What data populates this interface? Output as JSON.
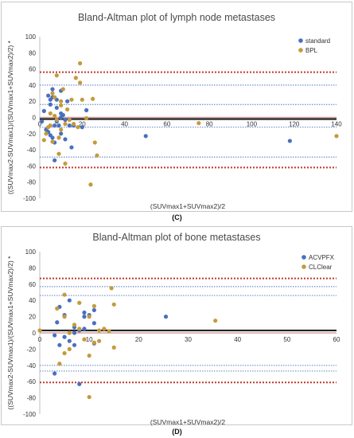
{
  "panels": [
    {
      "caption": "(C)",
      "colors": {
        "series1": "#4a6fc0",
        "series2": "#c49a3c",
        "mean": "#222222",
        "loa": "#c0392b",
        "ci": "#6f8fcf",
        "zero": "#d4a0a0"
      }
    },
    {
      "caption": "(D)",
      "colors": {
        "series1": "#4a6fc0",
        "series2": "#c49a3c",
        "mean": "#222222",
        "loa": "#c0392b",
        "ci": "#6f8fcf",
        "zero": "#d4a0a0"
      }
    }
  ],
  "chart_data": [
    {
      "type": "scatter",
      "title": "Bland-Altman plot of lymph node metastases",
      "xlabel": "(SUVmax1+SUVmax2)/2",
      "ylabel": "((SUVmax2-SUVmax1)/(SUVmax1+SUVmax2)/2) *",
      "xlim": [
        0,
        140
      ],
      "ylim": [
        -100,
        100
      ],
      "xticks": [
        0,
        20,
        40,
        60,
        80,
        100,
        120,
        140
      ],
      "yticks": [
        -100,
        -80,
        -60,
        -40,
        -20,
        0,
        20,
        40,
        60,
        80,
        100
      ],
      "legend": "top-right",
      "reference_lines": {
        "mean": -2,
        "limits_of_agreement": [
          56,
          -62
        ],
        "confidence_bounds": [
          40,
          16,
          -12,
          -49
        ]
      },
      "series": [
        {
          "name": "standard",
          "points": [
            [
              1,
              -5
            ],
            [
              2,
              8
            ],
            [
              3,
              -15
            ],
            [
              4,
              -18
            ],
            [
              4,
              27
            ],
            [
              5,
              22
            ],
            [
              5,
              16
            ],
            [
              5,
              -22
            ],
            [
              6,
              35
            ],
            [
              6,
              25
            ],
            [
              6,
              -25
            ],
            [
              7,
              -10
            ],
            [
              7,
              -31
            ],
            [
              7,
              -53
            ],
            [
              8,
              22
            ],
            [
              8,
              12
            ],
            [
              8,
              -5
            ],
            [
              9,
              -10
            ],
            [
              10,
              33
            ],
            [
              10,
              5
            ],
            [
              10,
              -20
            ],
            [
              10,
              0
            ],
            [
              11,
              3
            ],
            [
              12,
              -3
            ],
            [
              12,
              -27
            ],
            [
              13,
              20
            ],
            [
              14,
              -10
            ],
            [
              15,
              -37
            ],
            [
              16,
              -10
            ],
            [
              20,
              -12
            ],
            [
              22,
              9
            ],
            [
              50,
              -23
            ],
            [
              118,
              -29
            ]
          ]
        },
        {
          "name": "BPL",
          "points": [
            [
              2,
              -28
            ],
            [
              3,
              -20
            ],
            [
              4,
              -12
            ],
            [
              5,
              5
            ],
            [
              5,
              -10
            ],
            [
              6,
              30
            ],
            [
              6,
              -30
            ],
            [
              7,
              25
            ],
            [
              7,
              2
            ],
            [
              8,
              52
            ],
            [
              8,
              -3
            ],
            [
              9,
              -45
            ],
            [
              9,
              -25
            ],
            [
              10,
              20
            ],
            [
              10,
              15
            ],
            [
              10,
              -15
            ],
            [
              11,
              35
            ],
            [
              12,
              -8
            ],
            [
              12,
              -57
            ],
            [
              13,
              10
            ],
            [
              14,
              -3
            ],
            [
              15,
              22
            ],
            [
              16,
              -8
            ],
            [
              17,
              49
            ],
            [
              18,
              -12
            ],
            [
              19,
              67
            ],
            [
              19,
              43
            ],
            [
              20,
              22
            ],
            [
              22,
              -1
            ],
            [
              24,
              -83
            ],
            [
              25,
              23
            ],
            [
              26,
              -31
            ],
            [
              27,
              -47
            ],
            [
              75,
              -7
            ],
            [
              140,
              -23
            ]
          ]
        }
      ]
    },
    {
      "type": "scatter",
      "title": "Bland-Altman plot of bone metastases",
      "xlabel": "(SUVmax1+SUVmax2)/2",
      "ylabel": "((SUVmax2-SUVmax1)/(SUVmax1+SUVmax2)/2) *",
      "xlim": [
        0,
        60
      ],
      "ylim": [
        -100,
        100
      ],
      "xticks": [
        0,
        10,
        20,
        30,
        40,
        50,
        60
      ],
      "yticks": [
        -100,
        -80,
        -60,
        -40,
        -20,
        0,
        20,
        40,
        60,
        80,
        100
      ],
      "legend": "top-right",
      "reference_lines": {
        "mean": 3,
        "limits_of_agreement": [
          67,
          -61
        ],
        "confidence_bounds": [
          57,
          46,
          -40,
          -47
        ]
      },
      "series": [
        {
          "name": "ACVPFX",
          "points": [
            [
              3,
              -3
            ],
            [
              3,
              -50
            ],
            [
              3.5,
              13
            ],
            [
              4,
              -15
            ],
            [
              4,
              32
            ],
            [
              5,
              22
            ],
            [
              5,
              -5
            ],
            [
              6,
              -10
            ],
            [
              6,
              40
            ],
            [
              7,
              0
            ],
            [
              7,
              -15
            ],
            [
              7,
              7
            ],
            [
              8,
              -63
            ],
            [
              8,
              3
            ],
            [
              9,
              5
            ],
            [
              9,
              20
            ],
            [
              9,
              25
            ],
            [
              10,
              22
            ],
            [
              11,
              12
            ],
            [
              11,
              28
            ],
            [
              11,
              -13
            ],
            [
              25.5,
              20
            ]
          ]
        },
        {
          "name": "CLClear",
          "points": [
            [
              0,
              3
            ],
            [
              3.5,
              30
            ],
            [
              4,
              -38
            ],
            [
              5,
              -25
            ],
            [
              5,
              47
            ],
            [
              5,
              20
            ],
            [
              6,
              -20
            ],
            [
              6,
              0
            ],
            [
              7,
              10
            ],
            [
              8,
              5
            ],
            [
              8,
              37
            ],
            [
              9,
              -8
            ],
            [
              10,
              -28
            ],
            [
              10,
              -79
            ],
            [
              10,
              20
            ],
            [
              11,
              33
            ],
            [
              11,
              -12
            ],
            [
              12,
              -10
            ],
            [
              12,
              3
            ],
            [
              13,
              5
            ],
            [
              14,
              2
            ],
            [
              14.5,
              55
            ],
            [
              15,
              -18
            ],
            [
              15,
              35
            ],
            [
              35.5,
              15
            ]
          ]
        }
      ]
    }
  ]
}
